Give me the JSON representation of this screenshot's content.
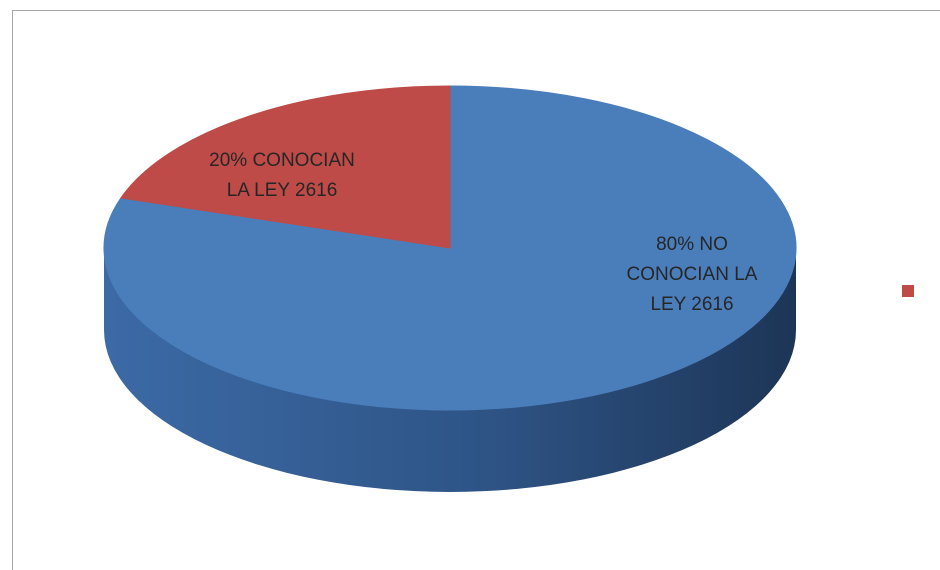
{
  "chart_data": {
    "type": "pie",
    "style": "3d",
    "title": "",
    "slices": [
      {
        "label_lines": [
          "80%  NO",
          "CONOCIAN LA",
          "LEY 2616"
        ],
        "value": 80,
        "color": "#4a7ebb",
        "side_color": "#2f5586"
      },
      {
        "label_lines": [
          "20% CONOCIAN",
          "LA LEY 2616"
        ],
        "value": 20,
        "color": "#be4b48",
        "side_color": "#8a302e"
      }
    ],
    "legend": {
      "position": "right",
      "entries": [
        {
          "label": "",
          "color": "#be4b48"
        }
      ]
    },
    "grid": false
  }
}
